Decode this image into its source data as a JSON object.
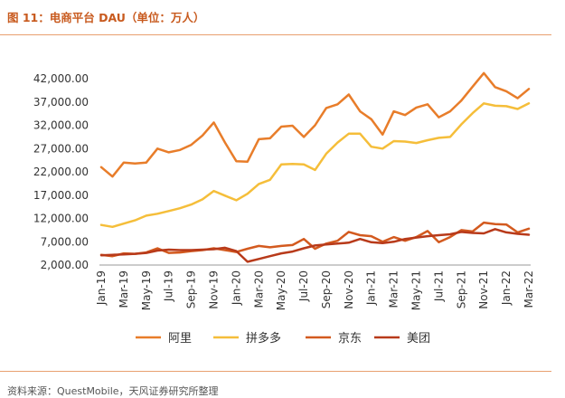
{
  "title": "图 11：电商平台 DAU（单位：万人）",
  "source": "资料来源：QuestMobile，天风证券研究所整理",
  "chart_data": {
    "type": "line",
    "title": "图 11：电商平台 DAU（单位：万人）",
    "xlabel": "",
    "ylabel": "",
    "ylim": [
      2000,
      42000
    ],
    "yticks": [
      "2,000.00",
      "7,000.00",
      "12,000.00",
      "17,000.00",
      "22,000.00",
      "27,000.00",
      "32,000.00",
      "37,000.00",
      "42,000.00"
    ],
    "ytick_values": [
      2000,
      7000,
      12000,
      17000,
      22000,
      27000,
      32000,
      37000,
      42000
    ],
    "xticks": [
      "Jan-19",
      "Mar-19",
      "May-19",
      "Jul-19",
      "Sep-19",
      "Nov-19",
      "Jan-20",
      "Mar-20",
      "May-20",
      "Jul-20",
      "Sep-20",
      "Nov-20",
      "Jan-21",
      "Mar-21",
      "May-21",
      "Jul-21",
      "Sep-21",
      "Nov-21",
      "Jan-22",
      "Mar-22"
    ],
    "categories": [
      "Jan-19",
      "Feb-19",
      "Mar-19",
      "Apr-19",
      "May-19",
      "Jun-19",
      "Jul-19",
      "Aug-19",
      "Sep-19",
      "Oct-19",
      "Nov-19",
      "Dec-19",
      "Jan-20",
      "Feb-20",
      "Mar-20",
      "Apr-20",
      "May-20",
      "Jun-20",
      "Jul-20",
      "Aug-20",
      "Sep-20",
      "Oct-20",
      "Nov-20",
      "Dec-20",
      "Jan-21",
      "Feb-21",
      "Mar-21",
      "Apr-21",
      "May-21",
      "Jun-21",
      "Jul-21",
      "Aug-21",
      "Sep-21",
      "Oct-21",
      "Nov-21",
      "Dec-21",
      "Jan-22",
      "Feb-22",
      "Mar-22"
    ],
    "legend_position": "bottom",
    "series": [
      {
        "name": "阿里",
        "color": "#e87d2a",
        "values": [
          23000,
          21000,
          24000,
          23800,
          24000,
          27000,
          26200,
          26700,
          27800,
          29800,
          32600,
          28300,
          24300,
          24200,
          29000,
          29200,
          31700,
          31900,
          29500,
          32000,
          35700,
          36500,
          38600,
          35000,
          33300,
          30000,
          35000,
          34200,
          35800,
          36500,
          33700,
          35000,
          37300,
          40300,
          43200,
          40200,
          39300,
          37800,
          39800
        ]
      },
      {
        "name": "拼多多",
        "color": "#f5be3a",
        "values": [
          10600,
          10200,
          10900,
          11600,
          12600,
          13000,
          13600,
          14200,
          15000,
          16100,
          17900,
          16900,
          15900,
          17300,
          19400,
          20300,
          23600,
          23700,
          23600,
          22400,
          25900,
          28300,
          30200,
          30200,
          27400,
          27000,
          28600,
          28500,
          28200,
          28800,
          29300,
          29500,
          32200,
          34600,
          36700,
          36200,
          36100,
          35500,
          36700
        ]
      },
      {
        "name": "京东",
        "color": "#d35a1f",
        "values": [
          4200,
          3900,
          4500,
          4400,
          4700,
          5600,
          4600,
          4700,
          5000,
          5200,
          5600,
          5200,
          4800,
          5500,
          6100,
          5800,
          6100,
          6300,
          7600,
          5500,
          6600,
          7200,
          9100,
          8400,
          8200,
          7000,
          8000,
          7200,
          8000,
          9300,
          6900,
          8000,
          9500,
          9200,
          11100,
          10800,
          10700,
          9000,
          9800
        ]
      },
      {
        "name": "美团",
        "color": "#b83a1a",
        "values": [
          4100,
          4200,
          4300,
          4400,
          4600,
          5100,
          5300,
          5200,
          5200,
          5300,
          5400,
          5700,
          5000,
          2700,
          3300,
          3900,
          4500,
          4900,
          5600,
          6200,
          6400,
          6600,
          6800,
          7600,
          6900,
          6700,
          7000,
          7600,
          7900,
          8200,
          8400,
          8600,
          9100,
          8900,
          8800,
          9700,
          9000,
          8700,
          8500
        ]
      }
    ]
  }
}
